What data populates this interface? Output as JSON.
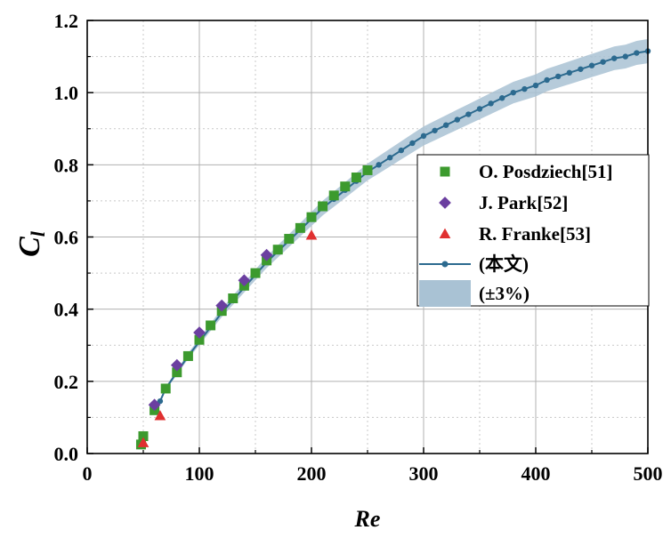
{
  "chart_data": {
    "type": "scatter",
    "title": "",
    "xlabel": "Re",
    "ylabel_main": "C",
    "ylabel_sub": "l",
    "xlim": [
      0,
      500
    ],
    "ylim": [
      0,
      1.2
    ],
    "xticks": [
      "0",
      "100",
      "200",
      "300",
      "400",
      "500"
    ],
    "yticks": [
      "0.0",
      "0.2",
      "0.4",
      "0.6",
      "0.8",
      "1.0",
      "1.2"
    ],
    "grid": true,
    "legend_position": "right",
    "series": [
      {
        "name": "O. Posdziech[51]",
        "marker": "square",
        "color": "#3c9a2e",
        "x": [
          48,
          50,
          60,
          70,
          80,
          90,
          100,
          110,
          120,
          130,
          140,
          150,
          160,
          170,
          180,
          190,
          200,
          210,
          220,
          230,
          240,
          250
        ],
        "y": [
          0.025,
          0.048,
          0.12,
          0.18,
          0.225,
          0.27,
          0.315,
          0.355,
          0.395,
          0.43,
          0.465,
          0.5,
          0.535,
          0.565,
          0.595,
          0.625,
          0.655,
          0.685,
          0.715,
          0.74,
          0.765,
          0.785
        ]
      },
      {
        "name": "J. Park[52]",
        "marker": "diamond",
        "color": "#6b3fa0",
        "x": [
          60,
          80,
          100,
          120,
          140,
          160
        ],
        "y": [
          0.135,
          0.245,
          0.335,
          0.41,
          0.48,
          0.55
        ]
      },
      {
        "name": "R. Franke[53]",
        "marker": "triangle",
        "color": "#e03030",
        "x": [
          50,
          65,
          200
        ],
        "y": [
          0.03,
          0.105,
          0.605
        ]
      },
      {
        "name": "(本文)",
        "marker": "line-dot",
        "color": "#2c6a8f",
        "x": [
          57.5,
          65,
          70,
          80,
          90,
          100,
          110,
          120,
          130,
          140,
          150,
          160,
          170,
          180,
          190,
          200,
          210,
          220,
          230,
          240,
          250,
          260,
          270,
          280,
          290,
          300,
          310,
          320,
          330,
          340,
          350,
          360,
          370,
          380,
          390,
          400,
          410,
          420,
          430,
          440,
          450,
          460,
          470,
          480,
          490,
          500
        ],
        "y": [
          0.115,
          0.145,
          0.18,
          0.225,
          0.27,
          0.31,
          0.35,
          0.39,
          0.425,
          0.46,
          0.495,
          0.53,
          0.56,
          0.59,
          0.62,
          0.65,
          0.68,
          0.705,
          0.73,
          0.755,
          0.78,
          0.8,
          0.82,
          0.84,
          0.86,
          0.88,
          0.895,
          0.91,
          0.925,
          0.94,
          0.955,
          0.97,
          0.985,
          1.0,
          1.01,
          1.02,
          1.035,
          1.045,
          1.055,
          1.065,
          1.075,
          1.085,
          1.095,
          1.1,
          1.11,
          1.115
        ]
      },
      {
        "name": "(±3%)",
        "marker": "band",
        "color": "#a9c2d4",
        "band_of": 3,
        "band_fraction": 0.03
      }
    ]
  }
}
